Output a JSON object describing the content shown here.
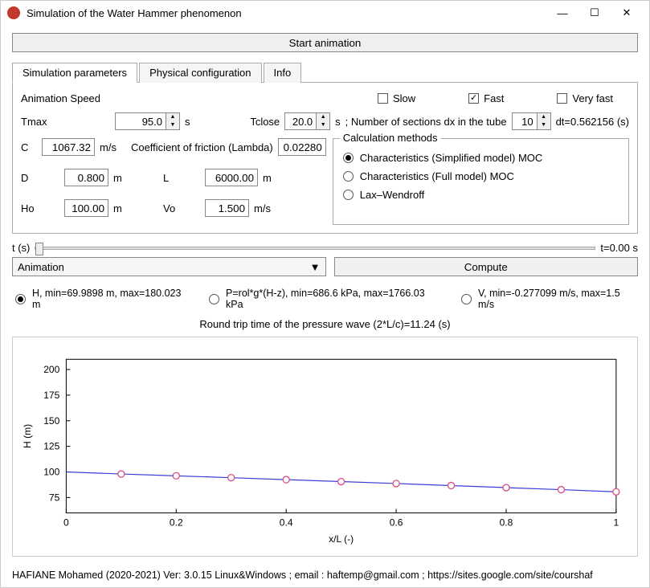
{
  "window": {
    "title": "Simulation of the Water Hammer phenomenon"
  },
  "start_button": "Start animation",
  "tabs": {
    "t0": "Simulation parameters",
    "t1": "Physical configuration",
    "t2": "Info"
  },
  "speed": {
    "label": "Animation Speed",
    "slow": "Slow",
    "slow_checked": false,
    "fast": "Fast",
    "fast_checked": true,
    "veryfast": "Very fast",
    "veryfast_checked": false
  },
  "tmax": {
    "label": "Tmax",
    "value": "95.0",
    "unit": "s"
  },
  "tclose": {
    "label": "Tclose",
    "value": "20.0",
    "unit": "s"
  },
  "sections": {
    "label": "; Number of sections dx in the tube",
    "value": "10"
  },
  "dt": {
    "label": "dt=0.562156 (s)"
  },
  "c": {
    "label": "C",
    "value": "1067.32",
    "unit": "m/s"
  },
  "lambda": {
    "label": "Coefficient of friction (Lambda)",
    "value": "0.02280"
  },
  "d": {
    "label": "D",
    "value": "0.800",
    "unit": "m"
  },
  "l": {
    "label": "L",
    "value": "6000.00",
    "unit": "m"
  },
  "ho": {
    "label": "Ho",
    "value": "100.00",
    "unit": "m"
  },
  "vo": {
    "label": "Vo",
    "value": "1.500",
    "unit": "m/s"
  },
  "calc": {
    "legend": "Calculation methods",
    "m0": "Characteristics (Simplified model) MOC",
    "m1": "Characteristics (Full model) MOC",
    "m2": "Lax–Wendroff",
    "selected": 0
  },
  "time_slider": {
    "label": "t (s)",
    "readout": "t=0.00 s"
  },
  "combo": {
    "value": "Animation"
  },
  "compute": "Compute",
  "opts": {
    "o0": "H, min=69.9898 m, max=180.023 m",
    "o1": "P=rol*g*(H-z), min=686.6 kPa, max=1766.03 kPa",
    "o2": "V, min=-0.277099 m/s, max=1.5 m/s",
    "selected": 0
  },
  "roundtrip": "Round trip time of the pressure wave (2*L/c)=11.24 (s)",
  "chart": {
    "ylabel": "H (m)",
    "xlabel": "x/L (-)",
    "yticks": [
      "75",
      "100",
      "125",
      "150",
      "175",
      "200"
    ],
    "xticks": [
      "0",
      "0.2",
      "0.4",
      "0.6",
      "0.8",
      "1"
    ],
    "ylim": [
      60,
      210
    ],
    "xlim": [
      0,
      1
    ],
    "line_color": "#3b3bd6",
    "marker_edge": "#d94c8a",
    "marker_fill": "#ffffff",
    "background": "#ffffff",
    "grid_color": "#d0d0d0",
    "data_x": [
      0,
      0.1,
      0.2,
      0.3,
      0.4,
      0.5,
      0.6,
      0.7,
      0.8,
      0.9,
      1.0
    ],
    "data_y": [
      100,
      98,
      96.2,
      94.4,
      92.5,
      90.6,
      88.7,
      86.7,
      84.7,
      82.7,
      80.6
    ],
    "markers_x": [
      0.1,
      0.2,
      0.3,
      0.4,
      0.5,
      0.6,
      0.7,
      0.8,
      0.9,
      1.0
    ],
    "markers_y": [
      98,
      96.2,
      94.4,
      92.5,
      90.6,
      88.7,
      86.7,
      84.7,
      82.7,
      80.6
    ]
  },
  "footer": "HAFIANE Mohamed (2020-2021) Ver: 3.0.15 Linux&Windows ; email : haftemp@gmail.com ; https://sites.google.com/site/courshaf"
}
